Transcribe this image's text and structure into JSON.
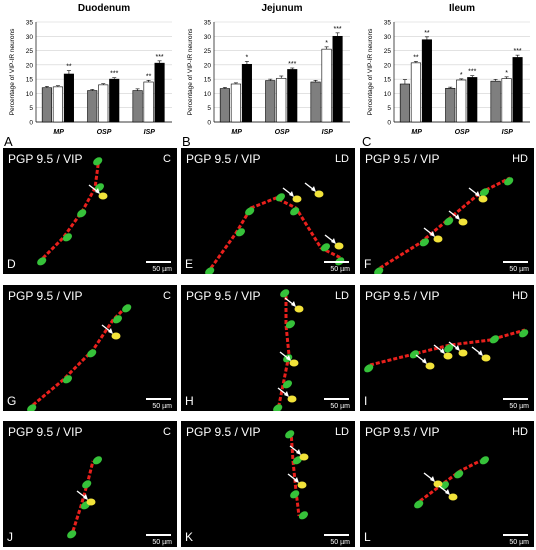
{
  "colors": {
    "control": "#7f7f7f",
    "low_dose": "#ffffff",
    "high_dose": "#000000",
    "red": "#e8201c",
    "green": "#36c23a",
    "yellow": "#f2e33a",
    "background": "#000000"
  },
  "chart_data": [
    {
      "type": "bar",
      "title": "Duodenum",
      "panel_letter": "A",
      "ylabel": "Percentage of VIP-IR neurons",
      "ylim": [
        0,
        35
      ],
      "yticks": [
        0,
        5,
        10,
        15,
        20,
        25,
        30,
        35
      ],
      "categories": [
        "MP",
        "OSP",
        "ISP"
      ],
      "series": [
        {
          "values": [
            12,
            11,
            11
          ],
          "errors": [
            0.5,
            0.4,
            0.6
          ]
        },
        {
          "values": [
            12.3,
            13,
            14
          ],
          "errors": [
            0.4,
            0.4,
            0.6
          ]
        },
        {
          "values": [
            16.8,
            15,
            20.6
          ],
          "errors": [
            1.2,
            0.5,
            0.8
          ]
        }
      ],
      "significance": [
        [
          "",
          "",
          ""
        ],
        [
          "",
          "",
          "**"
        ],
        [
          "**",
          "***",
          "***"
        ]
      ]
    },
    {
      "type": "bar",
      "title": "Jejunum",
      "panel_letter": "B",
      "ylabel": "Percentage of VIP-IR neurons",
      "ylim": [
        0,
        35
      ],
      "yticks": [
        0,
        5,
        10,
        15,
        20,
        25,
        30,
        35
      ],
      "categories": [
        "MP",
        "OSP",
        "ISP"
      ],
      "series": [
        {
          "values": [
            11.7,
            14.5,
            14
          ],
          "errors": [
            0.4,
            0.5,
            0.6
          ]
        },
        {
          "values": [
            13.3,
            15.3,
            25.5
          ],
          "errors": [
            0.4,
            0.8,
            0.8
          ]
        },
        {
          "values": [
            20.2,
            18.4,
            30
          ],
          "errors": [
            1,
            0.5,
            1.2
          ]
        }
      ],
      "significance": [
        [
          "",
          "",
          ""
        ],
        [
          "",
          "",
          "*"
        ],
        [
          "*",
          "***",
          "***"
        ]
      ]
    },
    {
      "type": "bar",
      "title": "Ileum",
      "panel_letter": "C",
      "ylabel": "Percentage of VIP-IR neurons",
      "ylim": [
        0,
        35
      ],
      "yticks": [
        0,
        5,
        10,
        15,
        20,
        25,
        30,
        35
      ],
      "categories": [
        "MP",
        "OSP",
        "ISP"
      ],
      "series": [
        {
          "values": [
            13.3,
            11.8,
            14.3
          ],
          "errors": [
            1.5,
            0.4,
            0.6
          ]
        },
        {
          "values": [
            20.7,
            14.7,
            15.2
          ],
          "errors": [
            0.5,
            0.4,
            0.6
          ]
        },
        {
          "values": [
            28.8,
            15.6,
            22.6
          ],
          "errors": [
            1,
            0.6,
            0.8
          ]
        }
      ],
      "significance": [
        [
          "",
          "",
          ""
        ],
        [
          "**",
          "*",
          "*"
        ],
        [
          "**",
          "***",
          "***"
        ]
      ]
    }
  ],
  "micrographs": [
    {
      "letter": "D",
      "title": "PGP 9.5 / VIP",
      "condition": "C",
      "scale": "50 µm"
    },
    {
      "letter": "E",
      "title": "PGP 9.5 / VIP",
      "condition": "LD",
      "scale": "50 µm"
    },
    {
      "letter": "F",
      "title": "PGP 9.5 / VIP",
      "condition": "HD",
      "scale": "50 µm"
    },
    {
      "letter": "G",
      "title": "PGP 9.5 / VIP",
      "condition": "C",
      "scale": "50 µm"
    },
    {
      "letter": "H",
      "title": "PGP 9.5 / VIP",
      "condition": "LD",
      "scale": "50 µm"
    },
    {
      "letter": "I",
      "title": "PGP 9.5 / VIP",
      "condition": "HD",
      "scale": "50 µm"
    },
    {
      "letter": "J",
      "title": "PGP 9.5 / VIP",
      "condition": "C",
      "scale": "50 µm"
    },
    {
      "letter": "K",
      "title": "PGP 9.5 / VIP",
      "condition": "LD",
      "scale": "50 µm"
    },
    {
      "letter": "L",
      "title": "PGP 9.5 / VIP",
      "condition": "HD",
      "scale": "50 µm"
    }
  ]
}
